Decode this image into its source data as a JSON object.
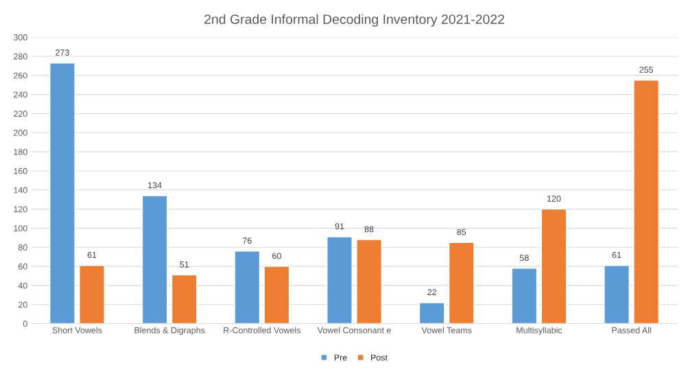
{
  "chart_data": {
    "type": "bar",
    "title": "2nd Grade Informal Decoding Inventory 2021-2022",
    "categories": [
      "Short Vowels",
      "Blends & Digraphs",
      "R-Controlled Vowels",
      "Vowel Consonant e",
      "Vowel Teams",
      "Multisyllabic",
      "Passed All"
    ],
    "series": [
      {
        "name": "Pre",
        "color": "#5b9bd5",
        "values": [
          273,
          134,
          76,
          91,
          22,
          58,
          61
        ]
      },
      {
        "name": "Post",
        "color": "#ed7d31",
        "values": [
          61,
          51,
          60,
          88,
          85,
          120,
          255
        ]
      }
    ],
    "ylim": [
      0,
      300
    ],
    "yticks": [
      0,
      20,
      40,
      60,
      80,
      100,
      120,
      140,
      160,
      180,
      200,
      220,
      240,
      260,
      280,
      300
    ],
    "grid": "y",
    "legend": "bottom",
    "data_labels": true
  }
}
